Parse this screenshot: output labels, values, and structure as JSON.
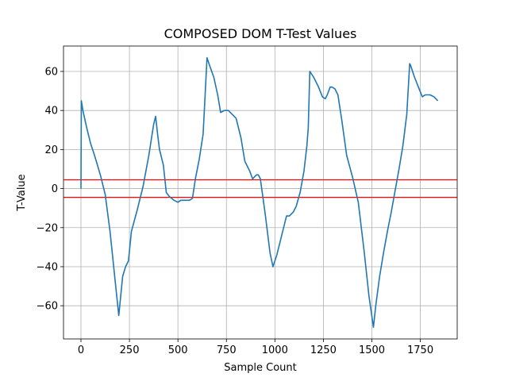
{
  "chart_data": {
    "type": "line",
    "title": "COMPOSED DOM T-Test Values",
    "xlabel": "Sample Count",
    "ylabel": "T-Value",
    "xlim": [
      -90,
      1940
    ],
    "ylim": [
      -77,
      73
    ],
    "xticks": [
      0,
      250,
      500,
      750,
      1000,
      1250,
      1500,
      1750
    ],
    "yticks": [
      -60,
      -40,
      -20,
      0,
      20,
      40,
      60
    ],
    "grid": true,
    "colors": {
      "series": "#1f77b4",
      "threshold": "#ff0000",
      "grid": "#b0b0b0"
    },
    "series": [
      {
        "x": [
          0,
          2,
          10,
          30,
          50,
          70,
          100,
          125,
          150,
          175,
          195,
          205,
          215,
          230,
          245,
          260,
          290,
          320,
          350,
          375,
          385,
          395,
          405,
          425,
          440,
          455,
          480,
          500,
          515,
          530,
          560,
          575,
          590,
          610,
          630,
          650,
          660,
          685,
          705,
          720,
          740,
          760,
          780,
          800,
          825,
          845,
          870,
          885,
          905,
          915,
          925,
          950,
          975,
          990,
          1010,
          1040,
          1060,
          1075,
          1085,
          1095,
          1110,
          1130,
          1150,
          1165,
          1172,
          1180,
          1200,
          1225,
          1245,
          1260,
          1270,
          1285,
          1295,
          1310,
          1325,
          1345,
          1370,
          1400,
          1430,
          1460,
          1485,
          1508,
          1520,
          1540,
          1560,
          1580,
          1600,
          1620,
          1640,
          1660,
          1680,
          1695,
          1700,
          1720,
          1740,
          1760,
          1775,
          1800,
          1820,
          1840
        ],
        "y": [
          0,
          45,
          40,
          31,
          23,
          17,
          7,
          -3,
          -22,
          -46,
          -65,
          -55,
          -45,
          -40,
          -37,
          -22,
          -11,
          1,
          17,
          33,
          37,
          28,
          20,
          12,
          -2,
          -4,
          -6,
          -7,
          -6,
          -6,
          -6,
          -5,
          5,
          15,
          28,
          67,
          64,
          57,
          48,
          39,
          40,
          40,
          38,
          36,
          26,
          14,
          9,
          5,
          7,
          7,
          5,
          -13,
          -33,
          -40,
          -34,
          -22,
          -14,
          -14,
          -13,
          -12,
          -9,
          -2,
          9,
          22,
          31,
          60,
          57,
          52,
          47,
          46,
          48,
          52,
          52,
          51,
          48,
          35,
          17,
          6,
          -7,
          -32,
          -55,
          -71,
          -60,
          -45,
          -33,
          -22,
          -12,
          -1,
          10,
          22,
          38,
          64,
          63,
          57,
          52,
          47,
          48,
          48,
          47,
          45
        ]
      }
    ],
    "hlines": [
      4.5,
      -4.5
    ]
  }
}
